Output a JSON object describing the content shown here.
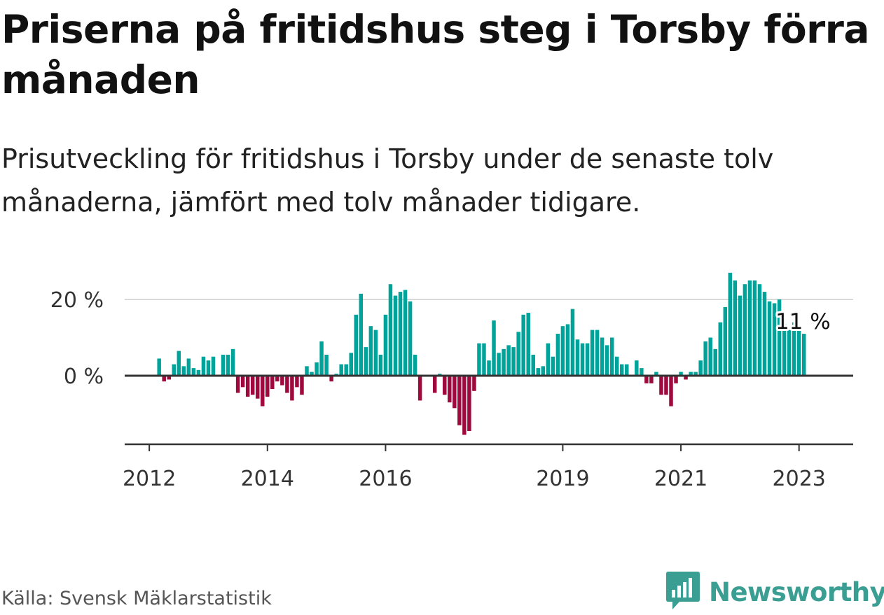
{
  "title": "Priserna på fritidshus steg i Torsby förra månaden",
  "subtitle": "Prisutveckling för fritidshus i Torsby under de senaste tolv månaderna, jämfört med tolv månader tidigare.",
  "source": "Källa: Svensk Mäklarstatistik",
  "brand": {
    "name": "Newsworthy",
    "logo_icon": "newsworthy-logo-icon",
    "color": "#3a9e93"
  },
  "colors": {
    "positive": "#00a39a",
    "negative": "#9e0a3d",
    "axis": "#333333",
    "grid": "#d9d9d9"
  },
  "chart_data": {
    "type": "bar",
    "title": "Priserna på fritidshus steg i Torsby förra månaden",
    "xlabel": "",
    "ylabel": "",
    "x_start": "2012-03",
    "x_unit": "month",
    "xlim": [
      "2011-08",
      "2023-12"
    ],
    "ylim": [
      -18,
      30
    ],
    "yticks": [
      {
        "value": 0,
        "label": "0 %"
      },
      {
        "value": 20,
        "label": "20 %"
      }
    ],
    "xticks": [
      "2012",
      "2014",
      "2016",
      "2019",
      "2021",
      "2023"
    ],
    "grid": "horizontal",
    "annotation": {
      "text": "11 %",
      "value": 11
    },
    "values": [
      4.5,
      -1.5,
      -1,
      3,
      6.5,
      2.5,
      4.5,
      2,
      1.5,
      5,
      4,
      5,
      0,
      5.5,
      5.5,
      7,
      -4.5,
      -3,
      -5.5,
      -5,
      -6,
      -8,
      -5.5,
      -3.5,
      -1.5,
      -2.5,
      -4.5,
      -6.5,
      -3,
      -5,
      2.5,
      1,
      3.5,
      9,
      5.5,
      -1.5,
      0.5,
      3,
      3,
      6,
      16,
      21.5,
      7.5,
      13,
      12,
      5.5,
      16,
      24,
      21,
      22,
      22.5,
      19.5,
      5.5,
      -6.5,
      0,
      0,
      -4.5,
      0.5,
      -5,
      -7,
      -8.5,
      -13,
      -15.5,
      -14.5,
      -4,
      8.5,
      8.5,
      4,
      14.5,
      6,
      7,
      8,
      7.5,
      11.5,
      16,
      16.5,
      5.5,
      2,
      2.5,
      8.5,
      5,
      11,
      13,
      13.5,
      17.5,
      9.5,
      8.5,
      8.5,
      12,
      12,
      10,
      8,
      10,
      5,
      3,
      3,
      0,
      4,
      2,
      -2,
      -2,
      1,
      -5,
      -5,
      -8,
      -2,
      1,
      -1,
      1,
      1,
      4,
      9,
      10,
      7,
      14,
      18,
      27,
      25,
      21,
      24,
      25,
      25,
      24,
      22,
      19.5,
      19,
      20,
      13.5,
      12,
      14,
      12,
      11
    ]
  }
}
